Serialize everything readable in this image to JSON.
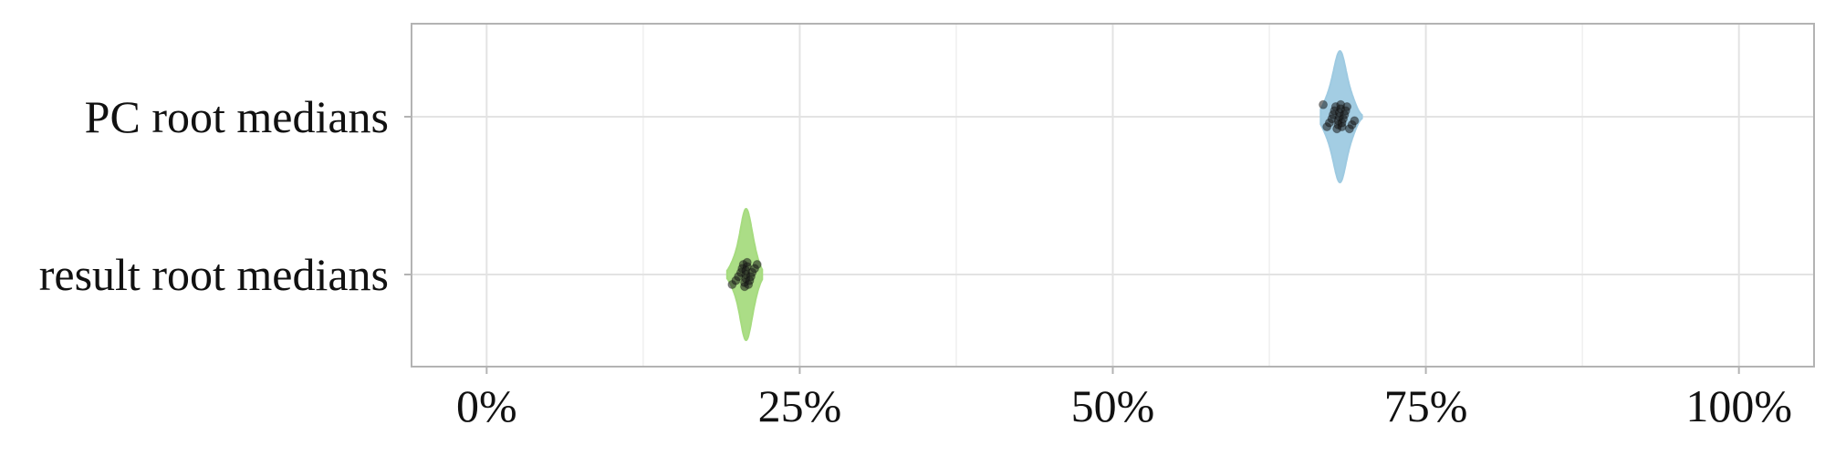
{
  "chart_data": {
    "type": "violin",
    "title": "",
    "xlabel": "",
    "ylabel": "",
    "xlim": [
      -6,
      106
    ],
    "x_ticks": [
      0,
      25,
      50,
      75,
      100
    ],
    "x_tick_labels": [
      "0%",
      "25%",
      "50%",
      "75%",
      "100%"
    ],
    "grid": true,
    "legend": "none",
    "categories": [
      "PC root medians",
      "result root medians"
    ],
    "series": [
      {
        "category": "PC root medians",
        "color": "#9ecae1",
        "median": 68.2,
        "min": 66.6,
        "max": 69.9,
        "points": [
          66.8,
          67.1,
          67.3,
          67.5,
          67.6,
          67.7,
          67.8,
          67.9,
          68.0,
          68.0,
          68.1,
          68.1,
          68.2,
          68.2,
          68.3,
          68.3,
          68.4,
          68.5,
          68.6,
          68.7,
          68.9,
          69.1,
          69.3
        ]
      },
      {
        "category": "result root medians",
        "color": "#a6db7f",
        "median": 20.7,
        "min": 19.2,
        "max": 22.0,
        "points": [
          19.6,
          19.9,
          20.1,
          20.3,
          20.4,
          20.5,
          20.6,
          20.6,
          20.7,
          20.7,
          20.7,
          20.8,
          20.8,
          20.9,
          21.0,
          21.1,
          21.2,
          21.4,
          21.6
        ]
      }
    ]
  }
}
